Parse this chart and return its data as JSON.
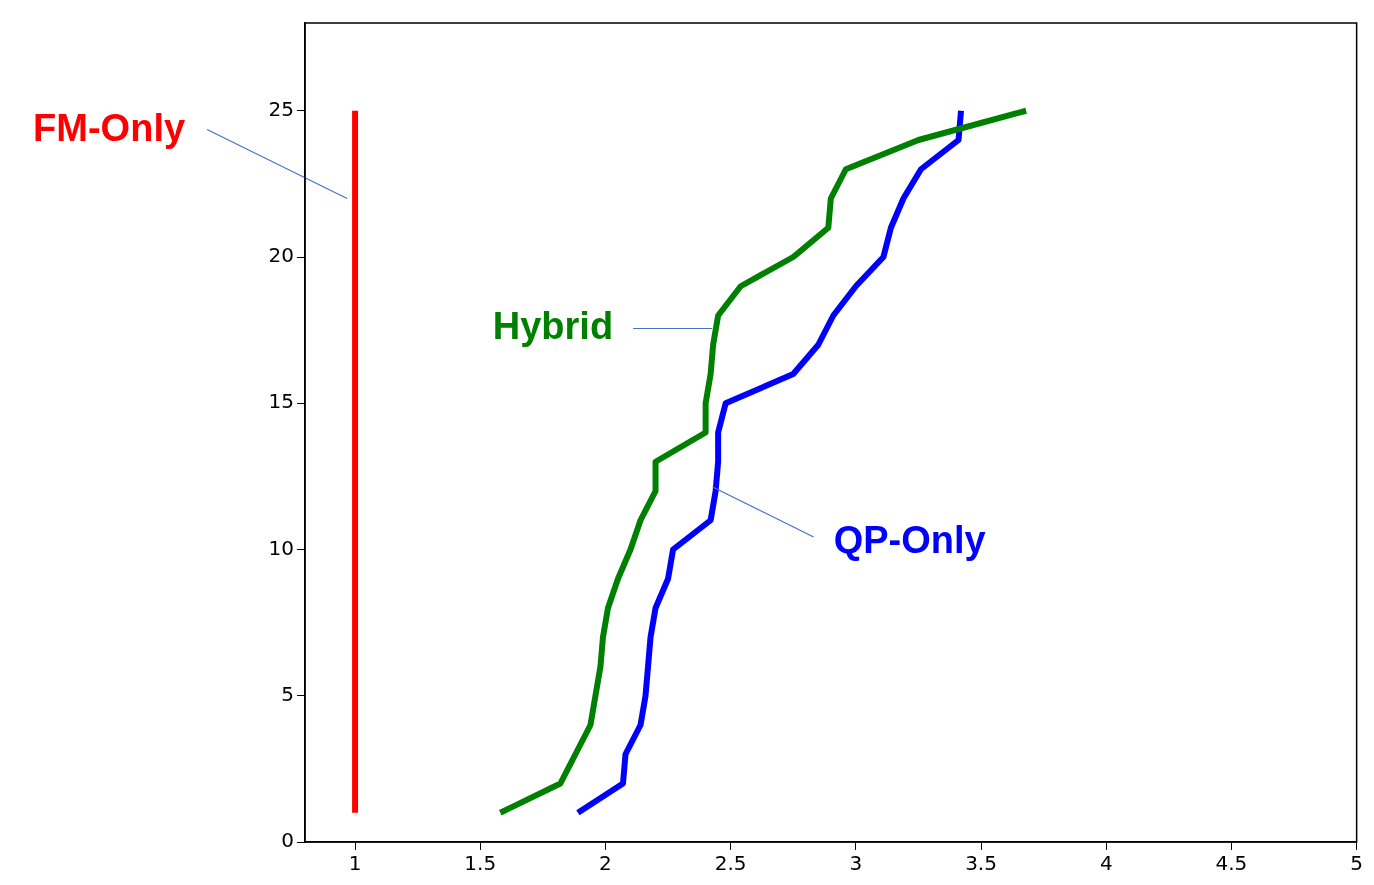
{
  "chart_data": {
    "type": "line",
    "xlim": [
      0.8,
      5
    ],
    "xticks": [
      1,
      1.5,
      2,
      2.5,
      3,
      3.5,
      4,
      4.5,
      5
    ],
    "ylim": [
      0,
      28
    ],
    "yticks": [
      0,
      5,
      10,
      15,
      20,
      25
    ],
    "grid": false,
    "legend": false,
    "marker": "none",
    "line_style": "solid",
    "series": [
      {
        "name": "FM-Only",
        "color": "#ff0000",
        "x": [
          1,
          1,
          1,
          1,
          1,
          1,
          1,
          1,
          1,
          1,
          1,
          1,
          1,
          1,
          1,
          1,
          1,
          1,
          1,
          1,
          1,
          1,
          1,
          1,
          1
        ],
        "values": [
          1,
          2,
          3,
          4,
          5,
          6,
          7,
          8,
          9,
          10,
          11,
          12,
          13,
          14,
          15,
          16,
          17,
          18,
          19,
          20,
          21,
          22,
          23,
          24,
          25
        ]
      },
      {
        "name": "Hybrid",
        "color": "#008000",
        "x": [
          1.58,
          1.82,
          1.88,
          1.94,
          1.96,
          1.98,
          1.99,
          2.01,
          2.05,
          2.1,
          2.14,
          2.2,
          2.2,
          2.4,
          2.4,
          2.42,
          2.43,
          2.45,
          2.54,
          2.75,
          2.89,
          2.9,
          2.96,
          3.25,
          3.68
        ],
        "values": [
          1,
          2,
          3,
          4,
          5,
          6,
          7,
          8,
          9,
          10,
          11,
          12,
          13,
          14,
          15,
          16,
          17,
          18,
          19,
          20,
          21,
          22,
          23,
          24,
          25
        ]
      },
      {
        "name": "QP-Only",
        "color": "#0000ff",
        "x": [
          1.89,
          2.07,
          2.08,
          2.14,
          2.16,
          2.17,
          2.18,
          2.2,
          2.25,
          2.27,
          2.42,
          2.44,
          2.45,
          2.45,
          2.48,
          2.75,
          2.85,
          2.91,
          3.0,
          3.11,
          3.14,
          3.19,
          3.26,
          3.41,
          3.42
        ],
        "values": [
          1,
          2,
          3,
          4,
          5,
          6,
          7,
          8,
          9,
          10,
          11,
          12,
          13,
          14,
          15,
          16,
          17,
          18,
          19,
          20,
          21,
          22,
          23,
          24,
          25
        ]
      }
    ]
  }
}
